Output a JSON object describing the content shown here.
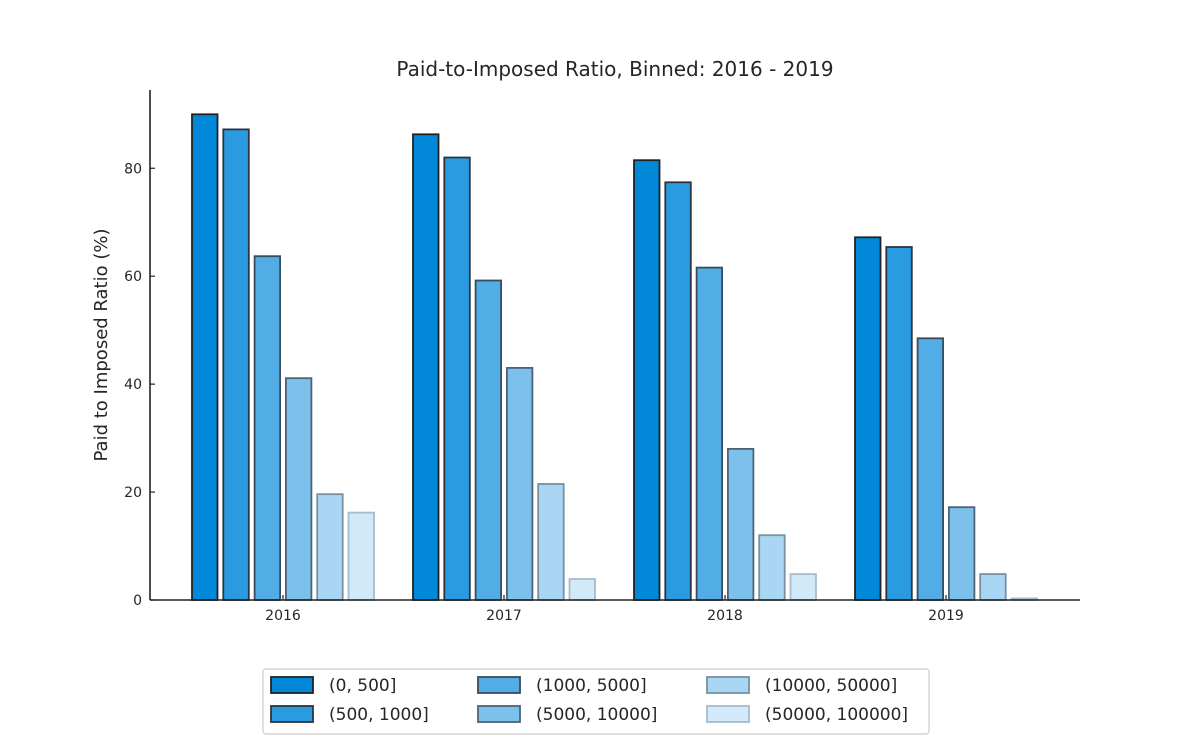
{
  "chart_data": {
    "type": "bar",
    "title": "Paid-to-Imposed Ratio, Binned: 2016 - 2019",
    "xlabel": "",
    "ylabel": "Paid to Imposed Ratio (%)",
    "categories": [
      "2016",
      "2017",
      "2018",
      "2019"
    ],
    "ylim": [
      0,
      94.5
    ],
    "yticks": [
      0,
      20,
      40,
      60,
      80
    ],
    "grid": false,
    "legend_position": "bottom-center",
    "series": [
      {
        "name": "(0, 500]",
        "color": "#0288d9",
        "edge": "#222222",
        "values": [
          90.0,
          86.3,
          81.5,
          67.2
        ]
      },
      {
        "name": "(500, 1000]",
        "color": "#2a9be0",
        "edge": "#2b3540",
        "values": [
          87.2,
          82.0,
          77.4,
          65.4
        ]
      },
      {
        "name": "(1000, 5000]",
        "color": "#52ace6",
        "edge": "#3a4c5c",
        "values": [
          63.7,
          59.2,
          61.6,
          48.5
        ]
      },
      {
        "name": "(5000, 10000]",
        "color": "#7cc1ec",
        "edge": "#4e6274",
        "values": [
          41.1,
          43.0,
          28.0,
          17.2
        ]
      },
      {
        "name": "(10000, 50000]",
        "color": "#a9d7f3",
        "edge": "#7790a2",
        "values": [
          19.6,
          21.5,
          12.0,
          4.8
        ]
      },
      {
        "name": "(50000, 100000]",
        "color": "#d1e9f8",
        "edge": "#a7bccb",
        "values": [
          16.2,
          3.9,
          4.8,
          0.3
        ]
      }
    ]
  }
}
